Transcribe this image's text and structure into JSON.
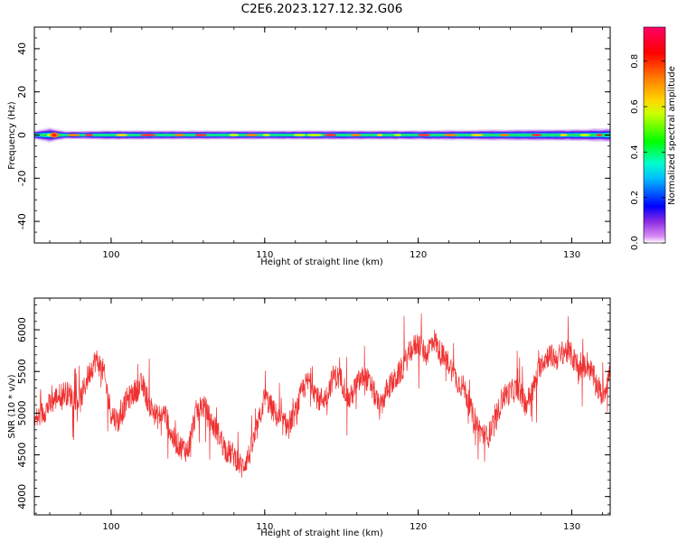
{
  "figure": {
    "title": "C2E6.2023.127.12.32.G06"
  },
  "colors": {
    "snr_line": "#f03030",
    "axes": "#000000",
    "background": "#ffffff"
  },
  "chart_data": [
    {
      "type": "heatmap",
      "xlabel": "Height of straight line (km)",
      "ylabel": "Frequency (Hz)",
      "xlim": [
        95,
        132.5
      ],
      "ylim": [
        -50,
        50
      ],
      "xticks": [
        100,
        110,
        120,
        130
      ],
      "yticks": [
        -40,
        -20,
        0,
        20,
        40
      ],
      "grid": false,
      "band": {
        "x_range": [
          95,
          132.5
        ],
        "center_frequency": 0,
        "halfwidth_hz": [
          [
            95.0,
            2.0
          ],
          [
            96.0,
            3.5
          ],
          [
            97.0,
            2.0
          ],
          [
            98.0,
            2.0
          ],
          [
            100.0,
            2.3
          ],
          [
            105.0,
            2.2
          ],
          [
            110.0,
            2.2
          ],
          [
            115.0,
            2.3
          ],
          [
            120.0,
            2.3
          ],
          [
            125.0,
            2.6
          ],
          [
            130.0,
            2.8
          ],
          [
            132.5,
            3.2
          ]
        ],
        "peak_amplitude": 0.9
      },
      "colorbar": {
        "label": "Normalized spectral amplitude",
        "ticks": [
          0.0,
          0.2,
          0.4,
          0.6,
          0.8
        ],
        "range": [
          0,
          0.95
        ],
        "colormap": "gist_rainbow",
        "placement": "right"
      }
    },
    {
      "type": "line",
      "xlabel": "Height of straight line (km)",
      "ylabel": "SNR (10 * v/v)",
      "xlim": [
        95,
        132.5
      ],
      "ylim": [
        3780,
        6380
      ],
      "xticks": [
        100,
        110,
        120,
        130
      ],
      "yticks": [
        4000,
        4500,
        5000,
        5500,
        6000
      ],
      "grid": false,
      "series": [
        {
          "x": [
            95.0,
            95.5,
            96.0,
            96.5,
            97.0,
            97.5,
            98.0,
            98.5,
            99.0,
            99.5,
            100.0,
            100.5,
            101.0,
            101.5,
            102.0,
            102.5,
            103.0,
            103.5,
            104.0,
            104.5,
            105.0,
            105.5,
            106.0,
            106.5,
            107.0,
            107.5,
            108.0,
            108.5,
            109.0,
            109.5,
            110.0,
            110.5,
            111.0,
            111.5,
            112.0,
            112.5,
            113.0,
            113.5,
            114.0,
            114.5,
            115.0,
            115.5,
            116.0,
            116.5,
            117.0,
            117.5,
            118.0,
            118.5,
            119.0,
            119.5,
            120.0,
            120.5,
            121.0,
            121.5,
            122.0,
            122.5,
            123.0,
            123.5,
            124.0,
            124.5,
            125.0,
            125.5,
            126.0,
            126.5,
            127.0,
            127.5,
            128.0,
            128.5,
            129.0,
            129.5,
            130.0,
            130.5,
            131.0,
            131.5,
            132.0,
            132.5
          ],
          "y": [
            4900,
            5000,
            5100,
            5200,
            5250,
            5200,
            5150,
            5450,
            5650,
            5500,
            5000,
            4900,
            5150,
            5250,
            5350,
            5100,
            4950,
            5000,
            4700,
            4600,
            4550,
            5000,
            5100,
            4900,
            4750,
            4550,
            4500,
            4350,
            4500,
            4800,
            5200,
            5050,
            4900,
            4850,
            5000,
            5300,
            5400,
            5150,
            5200,
            5450,
            5400,
            5150,
            5350,
            5450,
            5300,
            5050,
            5300,
            5400,
            5550,
            5750,
            5850,
            5700,
            5900,
            5700,
            5600,
            5400,
            5300,
            5000,
            4800,
            4700,
            4900,
            5200,
            5250,
            5300,
            5100,
            5300,
            5600,
            5700,
            5650,
            5750,
            5700,
            5500,
            5600,
            5400,
            5200,
            5500
          ]
        }
      ]
    }
  ]
}
